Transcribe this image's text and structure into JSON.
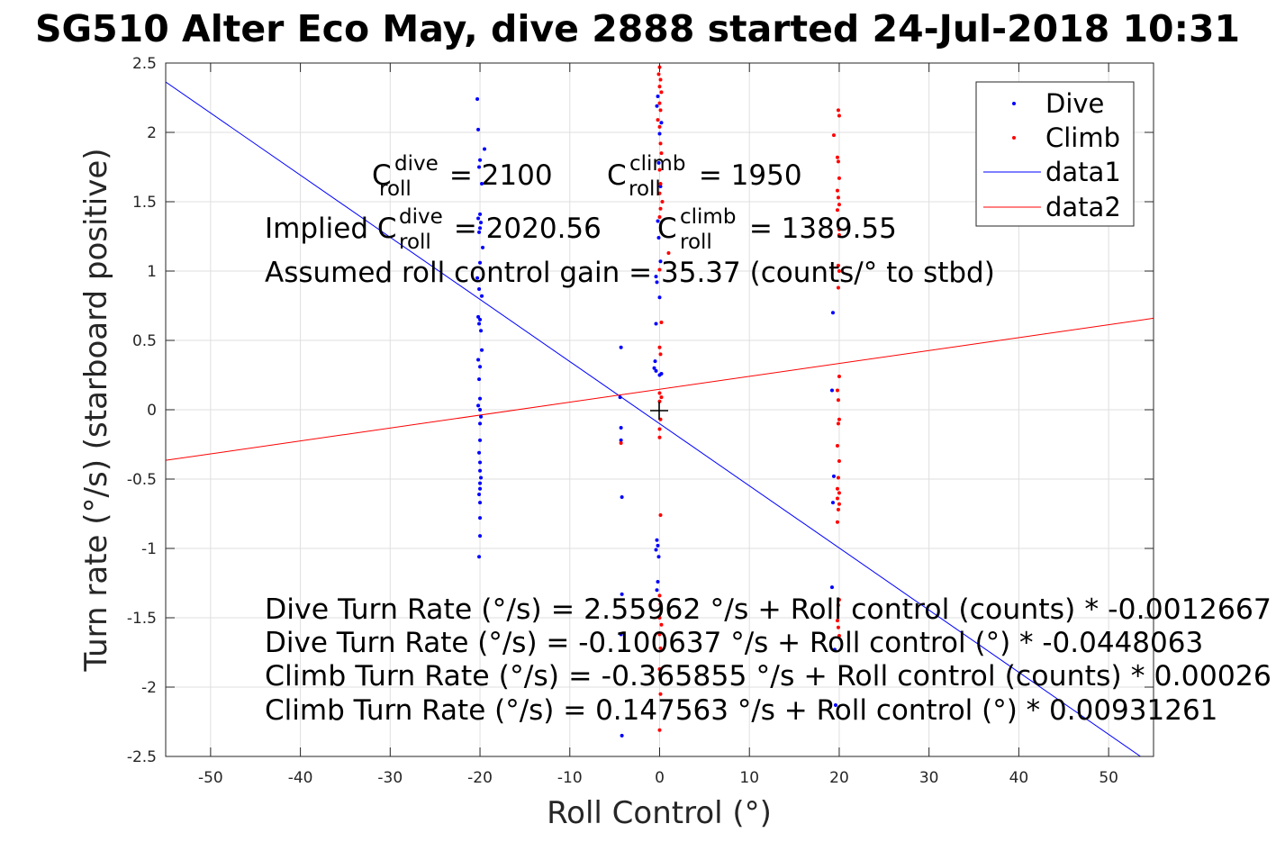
{
  "chart_data": {
    "type": "scatter",
    "title": "SG510 Alter Eco May, dive 2888 started 24-Jul-2018 10:31",
    "xlabel": "Roll Control (°)",
    "ylabel": "Turn rate (°/s) (starboard positive)",
    "xlim": [
      -55,
      55
    ],
    "ylim": [
      -2.5,
      2.5
    ],
    "xticks": [
      -50,
      -40,
      -30,
      -20,
      -10,
      0,
      10,
      20,
      30,
      40,
      50
    ],
    "yticks": [
      -2.5,
      -2,
      -1.5,
      -1,
      -0.5,
      0,
      0.5,
      1,
      1.5,
      2,
      2.5
    ],
    "grid": true,
    "legend_position": "top-right",
    "colors": {
      "dive": "#0000ff",
      "climb": "#ff0000",
      "axes": "#262626",
      "grid": "#dfdfdf"
    },
    "series": [
      {
        "name": "Dive",
        "kind": "points",
        "color": "#0000ff",
        "points": [
          [
            -20.3,
            2.24
          ],
          [
            -20.2,
            2.02
          ],
          [
            -20.0,
            1.8
          ],
          [
            -19.5,
            1.88
          ],
          [
            -20.1,
            1.75
          ],
          [
            -19.8,
            1.63
          ],
          [
            -20.0,
            1.41
          ],
          [
            -20.2,
            1.38
          ],
          [
            -19.9,
            1.35
          ],
          [
            -20.0,
            1.31
          ],
          [
            -20.1,
            1.28
          ],
          [
            -19.7,
            1.17
          ],
          [
            -20.0,
            1.06
          ],
          [
            -20.3,
            0.95
          ],
          [
            -20.1,
            0.87
          ],
          [
            -19.8,
            0.82
          ],
          [
            -20.2,
            0.67
          ],
          [
            -20.0,
            0.65
          ],
          [
            -20.1,
            0.62
          ],
          [
            -19.9,
            0.57
          ],
          [
            -19.8,
            0.43
          ],
          [
            -20.2,
            0.36
          ],
          [
            -20.0,
            0.31
          ],
          [
            -20.1,
            0.22
          ],
          [
            -20.0,
            0.08
          ],
          [
            -20.2,
            0.03
          ],
          [
            -20.0,
            0.0
          ],
          [
            -19.9,
            -0.05
          ],
          [
            -20.0,
            -0.1
          ],
          [
            -20.0,
            -0.22
          ],
          [
            -20.1,
            -0.31
          ],
          [
            -20.0,
            -0.38
          ],
          [
            -20.0,
            -0.44
          ],
          [
            -19.9,
            -0.49
          ],
          [
            -20.0,
            -0.53
          ],
          [
            -20.0,
            -0.57
          ],
          [
            -20.1,
            -0.61
          ],
          [
            -20.0,
            -0.67
          ],
          [
            -20.0,
            -0.78
          ],
          [
            -20.0,
            -0.91
          ],
          [
            -20.1,
            -1.06
          ],
          [
            -4.3,
            0.45
          ],
          [
            -4.4,
            0.09
          ],
          [
            -4.3,
            -0.13
          ],
          [
            -4.3,
            -0.22
          ],
          [
            -4.2,
            -0.63
          ],
          [
            -4.2,
            -1.33
          ],
          [
            -4.3,
            -1.62
          ],
          [
            -4.2,
            -2.35
          ],
          [
            -0.2,
            2.26
          ],
          [
            -0.3,
            2.19
          ],
          [
            0.2,
            2.07
          ],
          [
            0.0,
            1.99
          ],
          [
            -0.1,
            1.78
          ],
          [
            0.1,
            1.61
          ],
          [
            -0.2,
            1.36
          ],
          [
            -0.1,
            1.24
          ],
          [
            0.1,
            1.07
          ],
          [
            -0.4,
            0.96
          ],
          [
            -0.3,
            0.92
          ],
          [
            0.0,
            0.81
          ],
          [
            -0.4,
            0.62
          ],
          [
            -0.5,
            0.35
          ],
          [
            -0.6,
            0.3
          ],
          [
            -0.4,
            0.28
          ],
          [
            0.2,
            0.26
          ],
          [
            0.0,
            0.25
          ],
          [
            -0.3,
            -0.94
          ],
          [
            -0.2,
            -0.98
          ],
          [
            -0.4,
            -1.01
          ],
          [
            -0.1,
            -1.06
          ],
          [
            -0.2,
            -1.24
          ],
          [
            -0.3,
            -1.3
          ],
          [
            19.3,
            0.7
          ],
          [
            19.2,
            0.14
          ],
          [
            19.4,
            -0.48
          ],
          [
            19.3,
            -0.67
          ],
          [
            19.2,
            -1.28
          ],
          [
            19.5,
            -1.73
          ],
          [
            19.6,
            -2.13
          ]
        ]
      },
      {
        "name": "Climb",
        "kind": "points",
        "color": "#ff0000",
        "points": [
          [
            0.0,
            2.47
          ],
          [
            -0.1,
            2.42
          ],
          [
            0.1,
            2.38
          ],
          [
            0.0,
            2.33
          ],
          [
            0.2,
            2.29
          ],
          [
            0.0,
            2.21
          ],
          [
            0.1,
            2.16
          ],
          [
            -0.2,
            2.09
          ],
          [
            0.0,
            2.04
          ],
          [
            0.1,
            1.92
          ],
          [
            0.2,
            1.85
          ],
          [
            0.0,
            1.73
          ],
          [
            0.1,
            1.63
          ],
          [
            0.0,
            1.56
          ],
          [
            0.3,
            1.5
          ],
          [
            0.1,
            1.45
          ],
          [
            0.0,
            1.39
          ],
          [
            1.0,
            1.13
          ],
          [
            0.0,
            1.01
          ],
          [
            0.2,
            0.63
          ],
          [
            0.0,
            0.45
          ],
          [
            0.1,
            0.4
          ],
          [
            0.0,
            0.12
          ],
          [
            0.2,
            0.09
          ],
          [
            0.0,
            0.06
          ],
          [
            0.1,
            -0.07
          ],
          [
            0.0,
            -0.14
          ],
          [
            0.0,
            -0.2
          ],
          [
            0.1,
            -0.76
          ],
          [
            0.0,
            -1.34
          ],
          [
            0.1,
            -1.4
          ],
          [
            0.0,
            -1.5
          ],
          [
            0.2,
            -1.55
          ],
          [
            0.0,
            -1.62
          ],
          [
            0.1,
            -1.72
          ],
          [
            0.0,
            -1.87
          ],
          [
            0.1,
            -2.05
          ],
          [
            0.0,
            -2.31
          ],
          [
            -4.3,
            -0.24
          ],
          [
            19.9,
            2.16
          ],
          [
            20.0,
            2.12
          ],
          [
            19.4,
            1.98
          ],
          [
            19.8,
            1.82
          ],
          [
            19.9,
            1.79
          ],
          [
            20.0,
            1.67
          ],
          [
            19.8,
            1.58
          ],
          [
            19.9,
            1.53
          ],
          [
            20.0,
            1.48
          ],
          [
            19.8,
            1.44
          ],
          [
            20.0,
            1.3
          ],
          [
            20.0,
            1.26
          ],
          [
            19.9,
            1.04
          ],
          [
            20.0,
            1.0
          ],
          [
            19.9,
            0.88
          ],
          [
            20.0,
            0.24
          ],
          [
            19.8,
            0.14
          ],
          [
            19.9,
            0.07
          ],
          [
            20.0,
            -0.07
          ],
          [
            19.9,
            -0.1
          ],
          [
            19.8,
            -0.26
          ],
          [
            20.0,
            -0.37
          ],
          [
            19.9,
            -0.49
          ],
          [
            19.8,
            -0.57
          ],
          [
            20.0,
            -0.6
          ],
          [
            19.8,
            -0.64
          ],
          [
            20.0,
            -0.68
          ],
          [
            19.9,
            -0.72
          ],
          [
            19.8,
            -0.81
          ],
          [
            20.0,
            -1.37
          ],
          [
            19.9,
            -1.41
          ],
          [
            19.8,
            -1.52
          ],
          [
            19.9,
            -1.57
          ],
          [
            20.0,
            -1.63
          ]
        ]
      },
      {
        "name": "data1",
        "kind": "line",
        "color": "#0000ff",
        "intercept": -0.100637,
        "slope": -0.0448063
      },
      {
        "name": "data2",
        "kind": "line",
        "color": "#ff0000",
        "intercept": 0.147563,
        "slope": 0.00931261
      }
    ],
    "marker": {
      "x": 0,
      "y": 0,
      "symbol": "+"
    },
    "annotations": {
      "c_roll_dive": {
        "base": "C",
        "sup": "dive",
        "sub": "roll",
        "rest": " = 2100"
      },
      "c_roll_climb": {
        "base": "C",
        "sup": "climb",
        "sub": "roll",
        "rest": " = 1950"
      },
      "implied_dive": {
        "prefix": "Implied C",
        "sup": "dive",
        "sub": "roll",
        "rest": " = 2020.56"
      },
      "implied_climb": {
        "base": "C",
        "sup": "climb",
        "sub": "roll",
        "rest": " = 1389.55"
      },
      "gain": "Assumed roll control gain = 35.37 (counts/° to stbd)",
      "eq1": "Dive Turn Rate (°/s) = 2.55962 °/s + Roll control (counts) * -0.0012667",
      "eq2": "Dive Turn Rate (°/s) = -0.100637 °/s + Roll control (°) * -0.0448063",
      "eq3": "Climb Turn Rate (°/s) = -0.365855 °/s + Roll control (counts) * 0.00026",
      "eq4": "Climb Turn Rate (°/s) = 0.147563 °/s + Roll control (°) * 0.00931261"
    }
  }
}
